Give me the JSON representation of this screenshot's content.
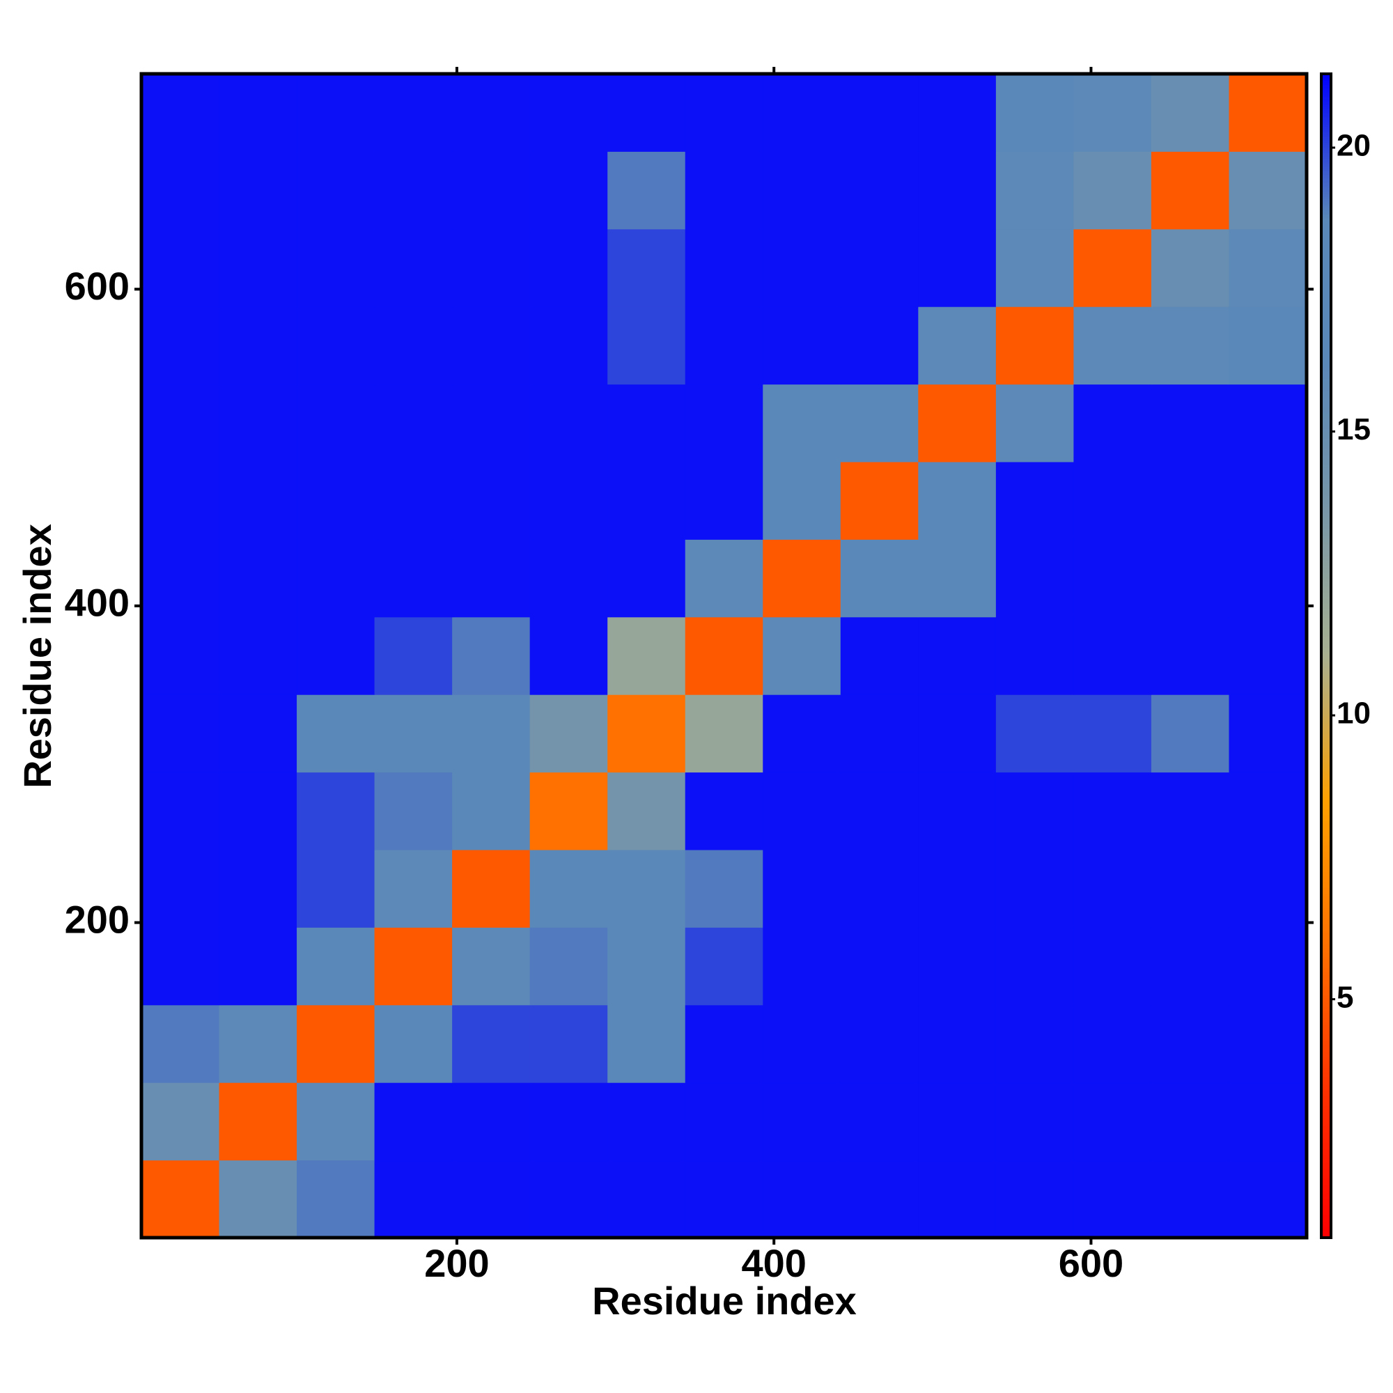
{
  "chart_data": {
    "type": "heatmap",
    "x_label": "Residue index",
    "y_label": "Residue index",
    "bins": [
      1,
      50,
      99,
      148,
      197,
      246,
      295,
      344,
      393,
      442,
      491,
      540,
      589,
      638,
      687,
      736
    ],
    "values": [
      [
        5,
        15,
        19,
        21,
        21,
        21,
        21,
        21,
        21,
        21,
        21,
        21,
        21,
        21,
        21
      ],
      [
        15,
        5,
        16,
        21,
        21,
        21,
        21,
        21,
        21,
        21,
        21,
        21,
        21,
        21,
        21
      ],
      [
        19,
        16,
        5,
        17,
        20,
        20,
        18,
        21,
        21,
        21,
        21,
        21,
        21,
        21,
        21
      ],
      [
        21,
        21,
        17,
        5,
        16,
        19,
        17,
        20,
        21,
        21,
        21,
        21,
        21,
        21,
        21
      ],
      [
        21,
        21,
        20,
        16,
        5,
        17,
        17,
        19,
        21,
        21,
        21,
        21,
        21,
        21,
        21
      ],
      [
        21,
        21,
        20,
        19,
        17,
        6,
        14,
        21,
        21,
        21,
        21,
        21,
        21,
        21,
        21
      ],
      [
        21,
        21,
        18,
        17,
        17,
        14,
        6,
        12,
        21,
        21,
        21,
        20,
        20,
        19,
        21
      ],
      [
        21,
        21,
        21,
        20,
        19,
        21,
        12,
        5,
        16,
        21,
        21,
        21,
        21,
        21,
        21
      ],
      [
        21,
        21,
        21,
        21,
        21,
        21,
        21,
        16,
        5,
        17,
        17,
        21,
        21,
        21,
        21
      ],
      [
        21,
        21,
        21,
        21,
        21,
        21,
        21,
        21,
        17,
        5,
        17,
        21,
        21,
        21,
        21
      ],
      [
        21,
        21,
        21,
        21,
        21,
        21,
        21,
        21,
        17,
        17,
        5,
        16,
        21,
        21,
        21
      ],
      [
        21,
        21,
        21,
        21,
        21,
        21,
        20,
        21,
        21,
        21,
        16,
        5,
        16,
        16,
        17
      ],
      [
        21,
        21,
        21,
        21,
        21,
        21,
        20,
        21,
        21,
        21,
        21,
        16,
        5,
        15,
        16
      ],
      [
        21,
        21,
        21,
        21,
        21,
        21,
        19,
        21,
        21,
        21,
        21,
        16,
        15,
        5,
        15
      ],
      [
        21,
        21,
        21,
        21,
        21,
        21,
        21,
        21,
        21,
        21,
        21,
        17,
        16,
        15,
        5
      ]
    ],
    "xlim": [
      1,
      736
    ],
    "ylim": [
      1,
      736
    ],
    "xticks": [
      200,
      400,
      600
    ],
    "yticks": [
      200,
      400,
      600
    ],
    "clim": [
      0.8,
      21.3
    ],
    "cticks": [
      5,
      10,
      15,
      20
    ],
    "colors": [
      "#ff0000",
      "#ff3000",
      "#ff7000",
      "#ffa000",
      "#a8b090",
      "#7896a8",
      "#5a88b8",
      "#5a88b8",
      "#0000ff"
    ]
  }
}
